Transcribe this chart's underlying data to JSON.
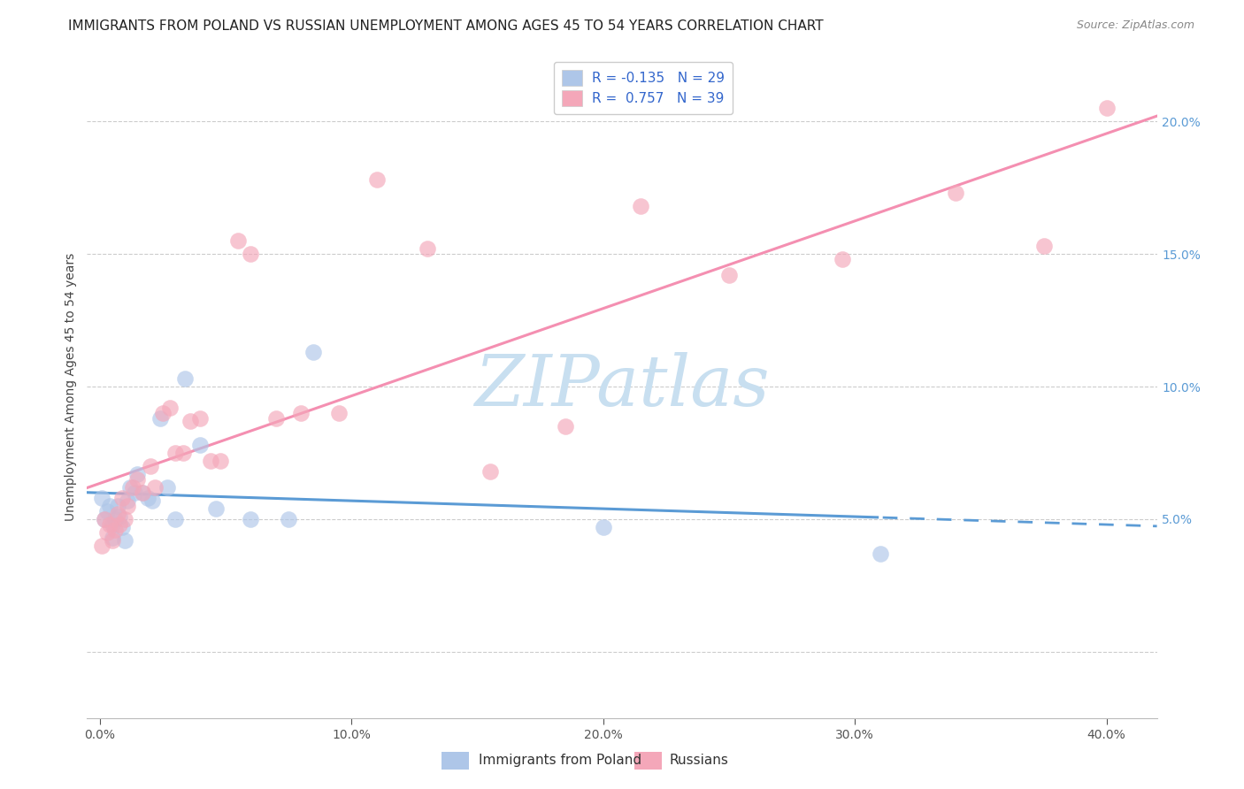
{
  "title": "IMMIGRANTS FROM POLAND VS RUSSIAN UNEMPLOYMENT AMONG AGES 45 TO 54 YEARS CORRELATION CHART",
  "source": "Source: ZipAtlas.com",
  "ylabel": "Unemployment Among Ages 45 to 54 years",
  "ylim": [
    -0.025,
    0.225
  ],
  "xlim": [
    -0.005,
    0.42
  ],
  "legend_entries": [
    {
      "label": "Immigrants from Poland",
      "R": "-0.135",
      "N": "29",
      "color": "#aec6e8",
      "line_color": "#5b9bd5"
    },
    {
      "label": "Russians",
      "R": "0.757",
      "N": "39",
      "color": "#f4a7b9",
      "line_color": "#f48fb1"
    }
  ],
  "poland_x": [
    0.001,
    0.002,
    0.003,
    0.004,
    0.005,
    0.005,
    0.006,
    0.007,
    0.008,
    0.009,
    0.01,
    0.011,
    0.012,
    0.014,
    0.015,
    0.017,
    0.019,
    0.021,
    0.024,
    0.027,
    0.03,
    0.034,
    0.04,
    0.046,
    0.06,
    0.075,
    0.085,
    0.2,
    0.31
  ],
  "poland_y": [
    0.058,
    0.05,
    0.053,
    0.055,
    0.048,
    0.043,
    0.05,
    0.055,
    0.051,
    0.047,
    0.042,
    0.057,
    0.062,
    0.06,
    0.067,
    0.06,
    0.058,
    0.057,
    0.088,
    0.062,
    0.05,
    0.103,
    0.078,
    0.054,
    0.05,
    0.05,
    0.113,
    0.047,
    0.037
  ],
  "russian_x": [
    0.001,
    0.002,
    0.003,
    0.004,
    0.005,
    0.006,
    0.007,
    0.008,
    0.009,
    0.01,
    0.011,
    0.013,
    0.015,
    0.017,
    0.02,
    0.022,
    0.025,
    0.028,
    0.03,
    0.033,
    0.036,
    0.04,
    0.044,
    0.048,
    0.055,
    0.06,
    0.07,
    0.08,
    0.095,
    0.11,
    0.13,
    0.155,
    0.185,
    0.215,
    0.25,
    0.295,
    0.34,
    0.375,
    0.4
  ],
  "russian_y": [
    0.04,
    0.05,
    0.045,
    0.048,
    0.042,
    0.046,
    0.052,
    0.048,
    0.058,
    0.05,
    0.055,
    0.062,
    0.065,
    0.06,
    0.07,
    0.062,
    0.09,
    0.092,
    0.075,
    0.075,
    0.087,
    0.088,
    0.072,
    0.072,
    0.155,
    0.15,
    0.088,
    0.09,
    0.09,
    0.178,
    0.152,
    0.068,
    0.085,
    0.168,
    0.142,
    0.148,
    0.173,
    0.153,
    0.205
  ],
  "watermark_text": "ZIPatlas",
  "watermark_color": "#c8dff0",
  "title_fontsize": 11,
  "axis_label_fontsize": 10,
  "tick_fontsize": 10,
  "legend_fontsize": 11,
  "source_fontsize": 9,
  "scatter_size": 180,
  "scatter_alpha": 0.65
}
